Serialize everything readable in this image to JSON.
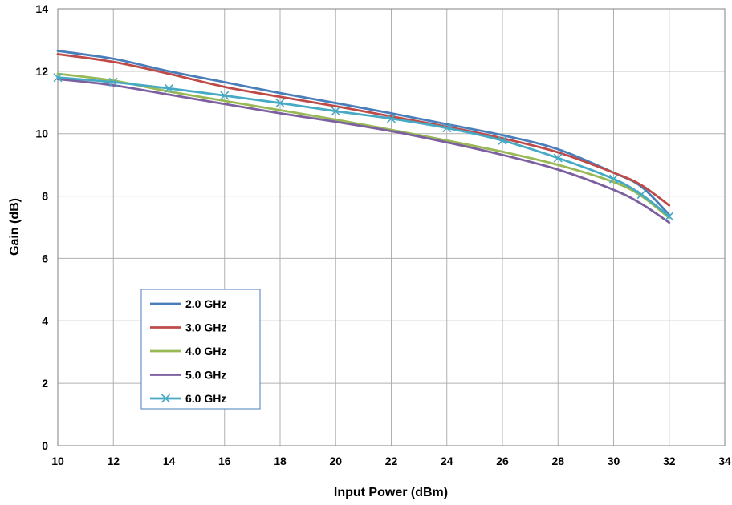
{
  "chart_data": {
    "type": "line",
    "title": "",
    "xlabel": "Input Power (dBm)",
    "ylabel": "Gain (dB)",
    "xlim": [
      10,
      34
    ],
    "ylim": [
      0,
      14
    ],
    "xticks": [
      10,
      12,
      14,
      16,
      18,
      20,
      22,
      24,
      26,
      28,
      30,
      32,
      34
    ],
    "yticks": [
      0,
      2,
      4,
      6,
      8,
      10,
      12,
      14
    ],
    "grid": true,
    "legend_position": "bottom-left",
    "series": [
      {
        "name": "2.0 GHz",
        "color": "#4a7ebb",
        "marker": "none",
        "x": [
          10,
          12,
          14,
          16,
          18,
          20,
          22,
          24,
          26,
          28,
          30,
          31,
          32
        ],
        "y": [
          12.65,
          12.4,
          12.0,
          11.65,
          11.3,
          10.98,
          10.65,
          10.3,
          9.95,
          9.5,
          8.75,
          8.3,
          7.4
        ]
      },
      {
        "name": "3.0 GHz",
        "color": "#be4b48",
        "marker": "none",
        "x": [
          10,
          12,
          14,
          16,
          18,
          20,
          22,
          24,
          26,
          28,
          30,
          31,
          32
        ],
        "y": [
          12.55,
          12.3,
          11.92,
          11.5,
          11.18,
          10.88,
          10.55,
          10.22,
          9.85,
          9.4,
          8.75,
          8.35,
          7.7
        ]
      },
      {
        "name": "4.0 GHz",
        "color": "#98b954",
        "marker": "none",
        "x": [
          10,
          12,
          14,
          16,
          18,
          20,
          22,
          24,
          26,
          28,
          30,
          31,
          32
        ],
        "y": [
          11.92,
          11.7,
          11.35,
          11.05,
          10.75,
          10.45,
          10.12,
          9.78,
          9.42,
          9.0,
          8.45,
          8.0,
          7.3
        ]
      },
      {
        "name": "5.0 GHz",
        "color": "#7d60a0",
        "marker": "none",
        "x": [
          10,
          12,
          14,
          16,
          18,
          20,
          22,
          24,
          26,
          28,
          30,
          31,
          32
        ],
        "y": [
          11.75,
          11.55,
          11.25,
          10.95,
          10.65,
          10.38,
          10.08,
          9.72,
          9.32,
          8.85,
          8.2,
          7.75,
          7.15
        ]
      },
      {
        "name": "6.0 GHz",
        "color": "#46aac5",
        "marker": "x",
        "x": [
          10,
          12,
          14,
          16,
          18,
          20,
          22,
          24,
          26,
          28,
          30,
          31,
          32
        ],
        "y": [
          11.8,
          11.65,
          11.45,
          11.22,
          10.98,
          10.72,
          10.48,
          10.18,
          9.78,
          9.22,
          8.55,
          8.05,
          7.35
        ]
      }
    ]
  }
}
